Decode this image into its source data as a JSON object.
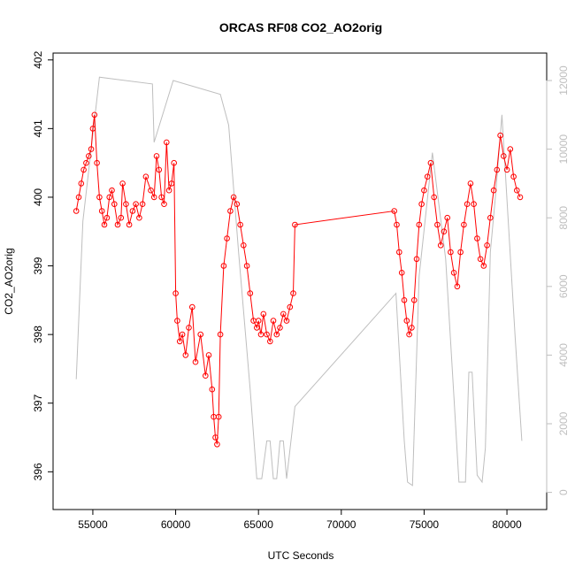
{
  "chart_data": {
    "type": "scatter",
    "title": "ORCAS RF08 CO2_AO2orig",
    "xlabel": "UTC Seconds",
    "ylabel": "CO2_AO2orig",
    "xlim": [
      52600,
      82400
    ],
    "ylim": [
      395.45,
      402.1
    ],
    "y2lim": [
      -500,
      12800
    ],
    "xticks": [
      55000,
      60000,
      65000,
      70000,
      75000,
      80000
    ],
    "yticks": [
      396,
      397,
      398,
      399,
      400,
      401,
      402
    ],
    "y2ticks": [
      0,
      2000,
      4000,
      6000,
      8000,
      10000,
      12000
    ],
    "grid": false,
    "legend": "none",
    "colors": {
      "co2": "#ff0000",
      "altitude": "#bebebe",
      "axis": "#000000"
    },
    "series": [
      {
        "role": "co2",
        "marker": "open-circle",
        "x": [
          54000,
          54150,
          54300,
          54450,
          54600,
          54750,
          54900,
          55000,
          55100,
          55250,
          55400,
          55550,
          55700,
          55850,
          56000,
          56150,
          56300,
          56500,
          56700,
          56800,
          57000,
          57200,
          57400,
          57600,
          57800,
          58000,
          58200,
          58500,
          58700,
          58850,
          59000,
          59150,
          59300,
          59450,
          59600,
          59750,
          59900,
          60000,
          60100,
          60250,
          60400,
          60600,
          60800,
          61000,
          61200,
          61500,
          61800,
          62000,
          62200,
          62300,
          62400,
          62500,
          62600,
          62700,
          62900,
          63100,
          63300,
          63500,
          63700,
          63900,
          64100,
          64300,
          64500,
          64700,
          64900,
          65000,
          65150,
          65300,
          65500,
          65700,
          65900,
          66100,
          66300,
          66500,
          66700,
          66900,
          67100,
          67200,
          73200,
          73350,
          73500,
          73650,
          73800,
          73950,
          74100,
          74250,
          74400,
          74550,
          74700,
          74850,
          75000,
          75200,
          75400,
          75600,
          75800,
          76000,
          76200,
          76400,
          76600,
          76800,
          77000,
          77200,
          77400,
          77600,
          77800,
          78000,
          78200,
          78400,
          78600,
          78800,
          79000,
          79200,
          79400,
          79600,
          79800,
          80000,
          80200,
          80400,
          80600,
          80800
        ],
        "y": [
          399.8,
          400.0,
          400.2,
          400.4,
          400.5,
          400.6,
          400.7,
          401.0,
          401.2,
          400.5,
          400.0,
          399.8,
          399.6,
          399.7,
          400.0,
          400.1,
          399.9,
          399.6,
          399.7,
          400.2,
          399.9,
          399.6,
          399.8,
          399.9,
          399.7,
          399.9,
          400.3,
          400.1,
          400.0,
          400.6,
          400.4,
          400.0,
          399.9,
          400.8,
          400.1,
          400.2,
          400.5,
          398.6,
          398.2,
          397.9,
          398.0,
          397.7,
          398.1,
          398.4,
          397.6,
          398.0,
          397.4,
          397.7,
          397.2,
          396.8,
          396.5,
          396.4,
          396.8,
          398.0,
          399.0,
          399.4,
          399.8,
          400.0,
          399.9,
          399.6,
          399.3,
          399.0,
          398.6,
          398.2,
          398.1,
          398.2,
          398.0,
          398.3,
          398.0,
          397.9,
          398.2,
          398.0,
          398.1,
          398.3,
          398.2,
          398.4,
          398.6,
          399.6,
          399.8,
          399.6,
          399.2,
          398.9,
          398.5,
          398.2,
          398.0,
          398.1,
          398.5,
          399.1,
          399.6,
          399.9,
          400.1,
          400.3,
          400.5,
          400.0,
          399.6,
          399.3,
          399.5,
          399.7,
          399.2,
          398.9,
          398.7,
          399.2,
          399.6,
          399.9,
          400.2,
          399.9,
          399.4,
          399.1,
          399.0,
          399.3,
          399.7,
          400.1,
          400.4,
          400.9,
          400.6,
          400.4,
          400.7,
          400.3,
          400.1,
          400.0
        ]
      },
      {
        "role": "altitude",
        "axis": "right",
        "x": [
          54000,
          54400,
          55400,
          58600,
          58700,
          59850,
          62700,
          63200,
          63800,
          64500,
          64900,
          65200,
          65500,
          65700,
          65900,
          66100,
          66300,
          66500,
          66700,
          67200,
          73300,
          73800,
          74000,
          74300,
          74700,
          75500,
          76300,
          76800,
          77100,
          77500,
          77700,
          77900,
          78200,
          78500,
          78700,
          79000,
          79300,
          79700,
          80500,
          80900
        ],
        "y": [
          3300,
          7900,
          12100,
          11900,
          10200,
          12000,
          11600,
          10700,
          7000,
          3000,
          400,
          400,
          1500,
          1500,
          400,
          400,
          1500,
          1500,
          400,
          2500,
          5800,
          1500,
          300,
          200,
          6300,
          9900,
          6800,
          2800,
          300,
          300,
          3500,
          3500,
          500,
          300,
          1300,
          7000,
          8600,
          11000,
          4500,
          1500
        ]
      }
    ]
  }
}
